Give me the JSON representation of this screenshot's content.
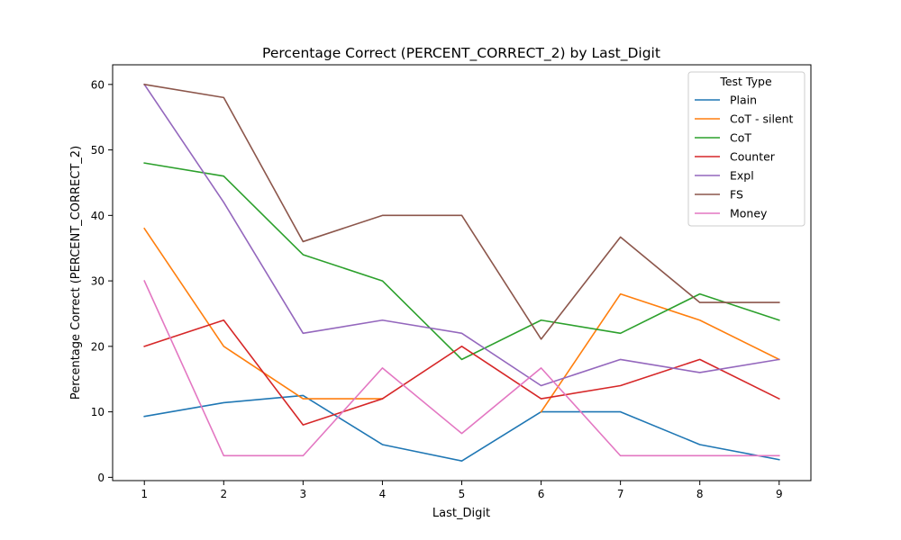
{
  "chart_data": {
    "type": "line",
    "title": "Percentage Correct (PERCENT_CORRECT_2) by Last_Digit",
    "xlabel": "Last_Digit",
    "ylabel": "Percentage Correct (PERCENT_CORRECT_2)",
    "x": [
      1,
      2,
      3,
      4,
      5,
      6,
      7,
      8,
      9
    ],
    "xticks": [
      "1",
      "2",
      "3",
      "4",
      "5",
      "6",
      "7",
      "8",
      "9"
    ],
    "yticks": [
      "0",
      "10",
      "20",
      "30",
      "40",
      "50",
      "60"
    ],
    "xlim": [
      0.6,
      9.4
    ],
    "ylim": [
      -0.5,
      63
    ],
    "grid": false,
    "legend": {
      "title": "Test Type",
      "position": "top-right"
    },
    "series": [
      {
        "name": "Plain",
        "color": "#1f77b4",
        "values": [
          9.3,
          11.4,
          12.5,
          5.0,
          2.5,
          10.0,
          10.0,
          5.0,
          2.7
        ]
      },
      {
        "name": "CoT - silent",
        "color": "#ff7f0e",
        "values": [
          38,
          20,
          12,
          12,
          null,
          10,
          28,
          24,
          18
        ]
      },
      {
        "name": "CoT",
        "color": "#2ca02c",
        "values": [
          48,
          46,
          34,
          30,
          18,
          24,
          22,
          28,
          24
        ]
      },
      {
        "name": "Counter",
        "color": "#d62728",
        "values": [
          20,
          24,
          8,
          12,
          20,
          12,
          14,
          18,
          12
        ]
      },
      {
        "name": "Expl",
        "color": "#9467bd",
        "values": [
          60,
          42,
          22,
          24,
          22,
          14,
          18,
          16,
          18
        ]
      },
      {
        "name": "FS",
        "color": "#8c564b",
        "values": [
          60,
          58,
          36,
          40,
          40,
          21.1,
          36.7,
          26.7,
          26.7
        ]
      },
      {
        "name": "Money",
        "color": "#e377c2",
        "values": [
          30,
          3.3,
          3.3,
          16.7,
          6.7,
          16.7,
          3.3,
          3.3,
          3.3
        ]
      }
    ]
  }
}
